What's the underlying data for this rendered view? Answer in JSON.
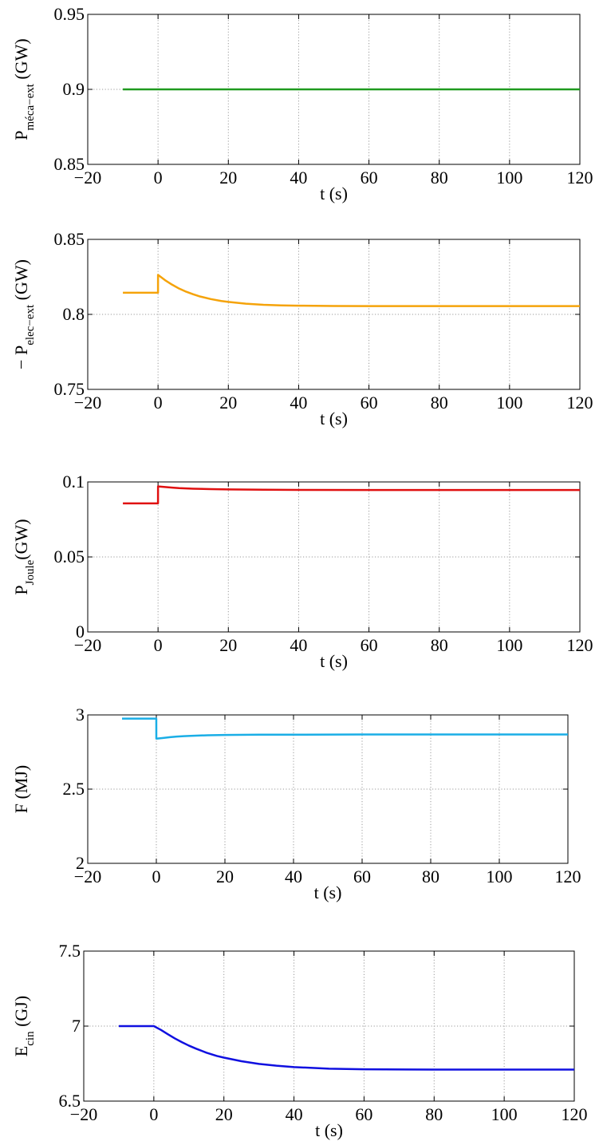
{
  "chart_data": [
    {
      "type": "line",
      "xlabel": "t (s)",
      "ylabel": {
        "prefix": "P",
        "sub": "méca−ext",
        "unit": " (GW)"
      },
      "xlim": [
        -20,
        120
      ],
      "ylim": [
        0.85,
        0.95
      ],
      "xticks": [
        -20,
        0,
        20,
        40,
        60,
        80,
        100,
        120
      ],
      "xtick_labels": [
        "−20",
        "0",
        "20",
        "40",
        "60",
        "80",
        "100",
        "120"
      ],
      "yticks": [
        0.85,
        0.9,
        0.95
      ],
      "ytick_labels": [
        "0.85",
        "0.9",
        "0.95"
      ],
      "grid": true,
      "color": "#1f9a1f",
      "series": [
        {
          "x": [
            -10,
            0,
            120
          ],
          "y": [
            0.9,
            0.9,
            0.9
          ]
        }
      ]
    },
    {
      "type": "line",
      "xlabel": "t (s)",
      "ylabel": {
        "prefix": "− P",
        "sub": "elec−ext",
        "unit": " (GW)"
      },
      "xlim": [
        -20,
        120
      ],
      "ylim": [
        0.75,
        0.85
      ],
      "xticks": [
        -20,
        0,
        20,
        40,
        60,
        80,
        100,
        120
      ],
      "xtick_labels": [
        "−20",
        "0",
        "20",
        "40",
        "60",
        "80",
        "100",
        "120"
      ],
      "yticks": [
        0.75,
        0.8,
        0.85
      ],
      "ytick_labels": [
        "0.75",
        "0.8",
        "0.85"
      ],
      "grid": true,
      "color": "#f5a30a",
      "series": [
        {
          "x": [
            -10,
            -0.01,
            0,
            2,
            4,
            6,
            8,
            10,
            12,
            15,
            18,
            20,
            25,
            30,
            35,
            40,
            50,
            60,
            80,
            100,
            120
          ],
          "y": [
            0.8144,
            0.8144,
            0.8263,
            0.8228,
            0.8198,
            0.8172,
            0.8151,
            0.8134,
            0.8119,
            0.8102,
            0.8089,
            0.8083,
            0.8071,
            0.8064,
            0.806,
            0.8058,
            0.8056,
            0.8055,
            0.8055,
            0.8055,
            0.8055
          ]
        }
      ]
    },
    {
      "type": "line",
      "xlabel": "t (s)",
      "ylabel": {
        "prefix": "P",
        "sub": "Joule",
        "unit": "(GW)"
      },
      "xlim": [
        -20,
        120
      ],
      "ylim": [
        0,
        0.1
      ],
      "xticks": [
        -20,
        0,
        20,
        40,
        60,
        80,
        100,
        120
      ],
      "xtick_labels": [
        "−20",
        "0",
        "20",
        "40",
        "60",
        "80",
        "100",
        "120"
      ],
      "yticks": [
        0,
        0.05,
        0.1
      ],
      "ytick_labels": [
        "0",
        "0.05",
        "0.1"
      ],
      "grid": true,
      "color": "#e01010",
      "series": [
        {
          "x": [
            -10,
            -0.01,
            0,
            2,
            4,
            6,
            8,
            10,
            15,
            20,
            30,
            40,
            60,
            80,
            100,
            120
          ],
          "y": [
            0.0857,
            0.0857,
            0.097,
            0.0966,
            0.0962,
            0.0959,
            0.0957,
            0.0955,
            0.0952,
            0.095,
            0.0948,
            0.0947,
            0.0946,
            0.0946,
            0.0946,
            0.0946
          ]
        }
      ]
    },
    {
      "type": "line",
      "xlabel": "t (s)",
      "ylabel": {
        "prefix": "F (MJ)",
        "sub": "",
        "unit": ""
      },
      "xlim": [
        -20,
        120
      ],
      "ylim": [
        2,
        3
      ],
      "xticks": [
        -20,
        0,
        20,
        40,
        60,
        80,
        100,
        120
      ],
      "xtick_labels": [
        "−20",
        "0",
        "20",
        "40",
        "60",
        "80",
        "100",
        "120"
      ],
      "yticks": [
        2,
        2.5,
        3
      ],
      "ytick_labels": [
        "2",
        "2.5",
        "3"
      ],
      "grid": true,
      "color": "#1aaee6",
      "series": [
        {
          "x": [
            -10,
            -0.01,
            0,
            2,
            4,
            6,
            8,
            10,
            15,
            20,
            30,
            40,
            60,
            80,
            100,
            120
          ],
          "y": [
            2.975,
            2.975,
            2.84,
            2.845,
            2.85,
            2.854,
            2.857,
            2.859,
            2.863,
            2.865,
            2.867,
            2.867,
            2.868,
            2.868,
            2.868,
            2.868
          ]
        }
      ]
    },
    {
      "type": "line",
      "xlabel": "t (s)",
      "ylabel": {
        "prefix": "E",
        "sub": "cin",
        "unit": " (GJ)"
      },
      "xlim": [
        -20,
        120
      ],
      "ylim": [
        6.5,
        7.5
      ],
      "xticks": [
        -20,
        0,
        20,
        40,
        60,
        80,
        100,
        120
      ],
      "xtick_labels": [
        "−20",
        "0",
        "20",
        "40",
        "60",
        "80",
        "100",
        "120"
      ],
      "yticks": [
        6.5,
        7,
        7.5
      ],
      "ytick_labels": [
        "6.5",
        "7",
        "7.5"
      ],
      "grid": true,
      "color": "#1010e0",
      "series": [
        {
          "x": [
            -10,
            0,
            2,
            4,
            6,
            8,
            10,
            12,
            15,
            18,
            20,
            25,
            30,
            35,
            40,
            50,
            60,
            80,
            100,
            120
          ],
          "y": [
            7.0,
            7.0,
            6.975,
            6.946,
            6.918,
            6.893,
            6.87,
            6.85,
            6.823,
            6.801,
            6.79,
            6.766,
            6.748,
            6.736,
            6.727,
            6.716,
            6.712,
            6.71,
            6.71,
            6.71
          ]
        }
      ]
    }
  ]
}
